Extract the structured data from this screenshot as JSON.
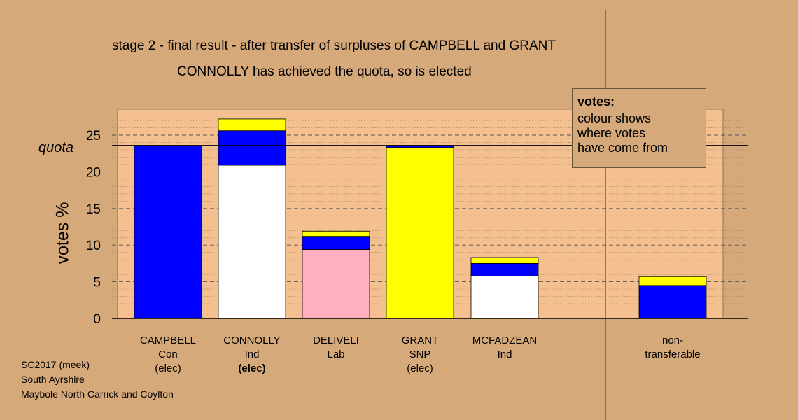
{
  "chart_data": {
    "type": "bar",
    "title": "stage 2 - final result - after transfer of surpluses of CAMPBELL and GRANT",
    "subtitle": "CONNOLLY has achieved the quota, so is elected",
    "ylabel": "votes %",
    "ylim": [
      0,
      28
    ],
    "yticks": [
      0,
      5,
      10,
      15,
      20,
      25
    ],
    "quota": 23.6,
    "quota_label": "quota",
    "categories": [
      {
        "name": "CAMPBELL",
        "party": "Con",
        "status": "(elec)",
        "status_bold": false
      },
      {
        "name": "CONNOLLY",
        "party": "Ind",
        "status": "(elec)",
        "status_bold": true
      },
      {
        "name": "DELIVELI",
        "party": "Lab",
        "status": "",
        "status_bold": false
      },
      {
        "name": "GRANT",
        "party": "SNP",
        "status": "(elec)",
        "status_bold": false
      },
      {
        "name": "MCFADZEAN",
        "party": "Ind",
        "status": "",
        "status_bold": false
      }
    ],
    "bars": [
      {
        "segments": [
          {
            "value": 23.6,
            "color": "#0000ff"
          }
        ]
      },
      {
        "segments": [
          {
            "value": 20.9,
            "color": "#ffffff"
          },
          {
            "value": 4.7,
            "color": "#0000ff"
          },
          {
            "value": 1.6,
            "color": "#ffff00"
          }
        ]
      },
      {
        "segments": [
          {
            "value": 9.4,
            "color": "#ffb0c0"
          },
          {
            "value": 1.8,
            "color": "#0000ff"
          },
          {
            "value": 0.7,
            "color": "#ffff00"
          }
        ]
      },
      {
        "segments": [
          {
            "value": 23.3,
            "color": "#ffff00"
          },
          {
            "value": 0.3,
            "color": "#0000ff"
          }
        ]
      },
      {
        "segments": [
          {
            "value": 5.8,
            "color": "#ffffff"
          },
          {
            "value": 1.7,
            "color": "#0000ff"
          },
          {
            "value": 0.8,
            "color": "#ffff00"
          }
        ]
      }
    ],
    "nontransferable": {
      "label_line1": "non-",
      "label_line2": "transferable",
      "segments": [
        {
          "value": 4.5,
          "color": "#0000ff"
        },
        {
          "value": 1.2,
          "color": "#ffff00"
        }
      ]
    },
    "grid": true
  },
  "legend": {
    "title": "votes:",
    "line1": "colour shows",
    "line2": "where votes",
    "line3": "have come from"
  },
  "footer": {
    "line1": "SC2017 (meek)",
    "line2": "South Ayrshire",
    "line3": "Maybole North Carrick and Coylton"
  },
  "colors": {
    "background": "#d6a97a",
    "plot_background": "#f5c08f"
  }
}
